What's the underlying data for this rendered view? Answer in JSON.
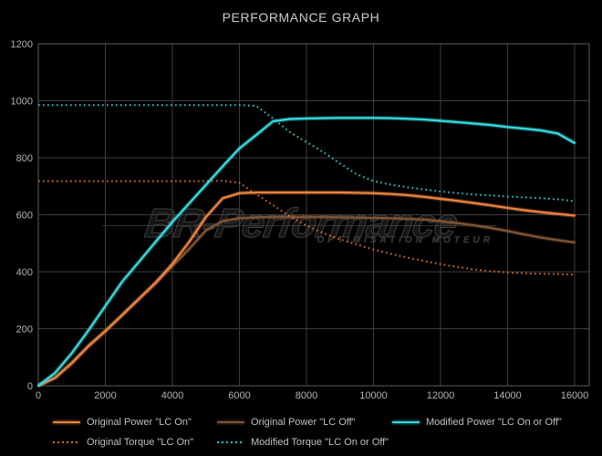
{
  "title": "PERFORMANCE GRAPH",
  "watermark": {
    "brand": "BR-Performance",
    "tagline": "OPTIMISATION MOTEUR"
  },
  "colors": {
    "background": "#000000",
    "grid": "#3e3e3e",
    "border": "#5c5c5c",
    "tick_text": "#b4b4b4",
    "title_text": "#cccccc",
    "legend_text": "#c0c0c0",
    "orange": "#e8823f",
    "brown": "#7e5434",
    "cyan": "#35d8dc",
    "orange_dotted": "#d96f2e",
    "cyan_dotted": "#2cc8cc"
  },
  "chart_data": {
    "type": "line",
    "title": "PERFORMANCE GRAPH",
    "xlabel": "",
    "ylabel": "",
    "xlim": [
      0,
      16000
    ],
    "ylim": [
      0,
      1200
    ],
    "grid": true,
    "legend_position": "bottom",
    "x_ticks": [
      0,
      2000,
      4000,
      6000,
      8000,
      10000,
      12000,
      14000,
      16000
    ],
    "y_ticks": [
      0,
      200,
      400,
      600,
      800,
      1000,
      1200
    ],
    "x": [
      0,
      500,
      1000,
      1500,
      2000,
      2500,
      3000,
      3500,
      4000,
      4500,
      5000,
      5500,
      6000,
      6500,
      7000,
      7500,
      8000,
      8500,
      9000,
      9500,
      10000,
      10500,
      11000,
      11500,
      12000,
      12500,
      13000,
      13500,
      14000,
      14500,
      15000,
      15500,
      16000
    ],
    "series": [
      {
        "name": "Original Power \"LC On\"",
        "color": "#e8823f",
        "style": "solid",
        "values": [
          0,
          28,
          80,
          140,
          192,
          248,
          305,
          362,
          428,
          505,
          592,
          658,
          676,
          678,
          678,
          678,
          678,
          678,
          678,
          677,
          676,
          673,
          669,
          663,
          656,
          649,
          641,
          633,
          624,
          616,
          609,
          603,
          597
        ]
      },
      {
        "name": "Original Power \"LC Off\"",
        "color": "#7e5434",
        "style": "solid",
        "values": [
          0,
          28,
          80,
          140,
          192,
          248,
          305,
          360,
          420,
          480,
          545,
          578,
          588,
          591,
          592,
          592,
          592,
          592,
          591,
          590,
          589,
          588,
          586,
          583,
          578,
          571,
          563,
          554,
          543,
          531,
          520,
          511,
          503
        ]
      },
      {
        "name": "Modified Power \"LC On or Off\"",
        "color": "#35d8dc",
        "style": "solid",
        "values": [
          0,
          45,
          115,
          195,
          280,
          365,
          435,
          505,
          575,
          640,
          705,
          770,
          833,
          880,
          928,
          936,
          938,
          939,
          940,
          940,
          940,
          939,
          937,
          934,
          930,
          925,
          920,
          915,
          908,
          902,
          896,
          885,
          852
        ]
      },
      {
        "name": "Original Torque \"LC On\"",
        "color": "#d96f2e",
        "style": "dotted",
        "values": [
          718,
          718,
          718,
          718,
          718,
          718,
          718,
          718,
          718,
          718,
          718,
          719,
          712,
          672,
          634,
          595,
          562,
          536,
          514,
          496,
          478,
          463,
          450,
          438,
          427,
          417,
          408,
          402,
          398,
          395,
          393,
          392,
          390
        ]
      },
      {
        "name": "Modified Torque \"LC On or Off\"",
        "color": "#2cc8cc",
        "style": "dotted",
        "values": [
          985,
          985,
          985,
          985,
          985,
          985,
          985,
          985,
          985,
          985,
          985,
          985,
          985,
          982,
          938,
          890,
          855,
          820,
          780,
          742,
          718,
          706,
          697,
          689,
          682,
          676,
          671,
          668,
          664,
          661,
          658,
          654,
          648
        ]
      }
    ]
  },
  "legend": {
    "rows": [
      [
        0,
        1,
        2
      ],
      [
        3,
        4
      ]
    ]
  }
}
